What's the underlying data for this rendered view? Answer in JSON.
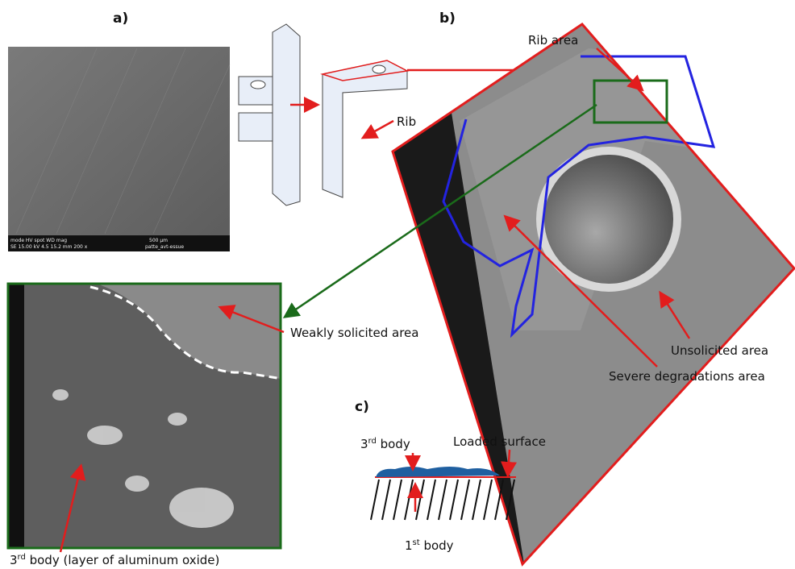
{
  "panel_a": {
    "label": "a)",
    "sem_info": [
      "mode  HV  spot  WD  mag",
      "SE  15.00 kV  4.5  15.2 mm  200 x"
    ],
    "scale": "500 µm",
    "file": "patte_avt-essue"
  },
  "schematic": {
    "rib": "Rib"
  },
  "panel_b": {
    "label": "b)",
    "rib_area": "Rib area",
    "unsolicited": "Unsolicited area",
    "severe": "Severe degradations area"
  },
  "zoom": {
    "weakly": "Weakly solicited area",
    "third_body": {
      "base": "3",
      "sup": "rd",
      "rest": " body (layer of aluminum oxide)"
    }
  },
  "panel_c": {
    "label": "c)",
    "third_body": {
      "base": "3",
      "sup": "rd",
      "rest": " body"
    },
    "loaded": "Loaded surface",
    "first_body": {
      "base": "1",
      "sup": "st",
      "rest": " body"
    }
  }
}
